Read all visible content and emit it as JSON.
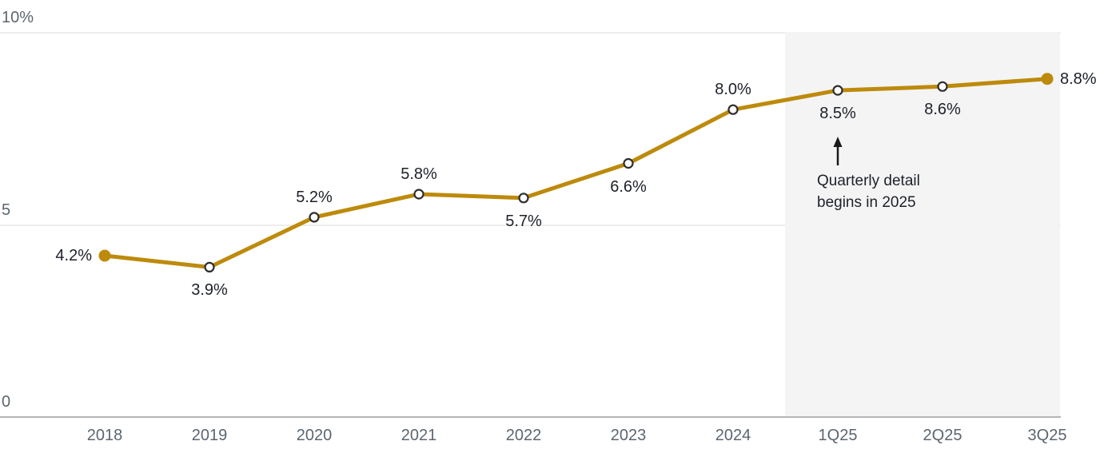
{
  "chart_data": {
    "type": "line",
    "title": "",
    "xlabel": "",
    "ylabel": "",
    "categories": [
      "2018",
      "2019",
      "2020",
      "2021",
      "2022",
      "2023",
      "2024",
      "1Q25",
      "2Q25",
      "3Q25"
    ],
    "values": [
      4.2,
      3.9,
      5.2,
      5.8,
      5.7,
      6.6,
      8.0,
      8.5,
      8.6,
      8.8
    ],
    "point_labels": [
      "4.2%",
      "3.9%",
      "5.2%",
      "5.8%",
      "5.7%",
      "6.6%",
      "8.0%",
      "8.5%",
      "8.6%",
      "8.8%"
    ],
    "label_positions": [
      "left",
      "below",
      "above",
      "above",
      "below",
      "below",
      "above",
      "below",
      "below",
      "right"
    ],
    "marker_filled": [
      true,
      false,
      false,
      false,
      false,
      false,
      false,
      false,
      false,
      true
    ],
    "ylim": [
      0,
      10
    ],
    "y_ticks": [
      {
        "label": "10%",
        "value": 10
      },
      {
        "label": "5",
        "value": 5
      },
      {
        "label": "0",
        "value": 0
      }
    ],
    "grid": "horizontal",
    "legend": "none",
    "line_color": "#BD8A0B",
    "marker_stroke_color": "#2e2e2e",
    "shaded_region": {
      "covers_categories": [
        "1Q25",
        "2Q25",
        "3Q25"
      ],
      "color": "#f4f4f4"
    },
    "annotation": {
      "line1": "Quarterly detail",
      "line2": "begins in 2025",
      "arrow": "up"
    }
  },
  "colors": {
    "background": "#ffffff",
    "line": "#BD8A0B",
    "data_label": "#1d2129",
    "axis_tick": "#5c6670",
    "gridline": "#ededed",
    "axis_line": "#b5b5b5",
    "shade": "#f4f4f4"
  }
}
